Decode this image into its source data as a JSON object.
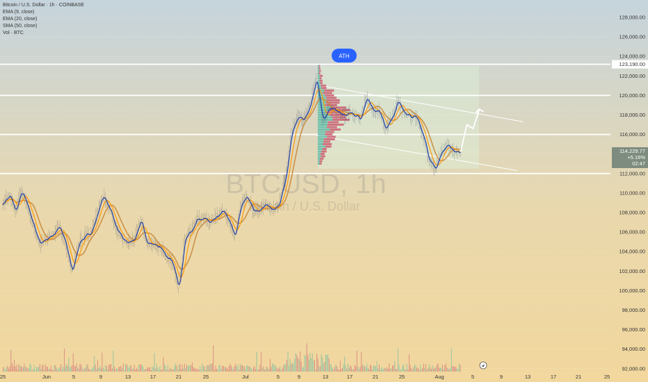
{
  "header": {
    "symbol_line": "Bitcoin / U.S. Dollar · 1h · COINBASE",
    "ema9": "EMA (9, close)",
    "ema20": "EMA (20, close)",
    "sma50": "SMA (50, close)",
    "vol": "Vol · BTC"
  },
  "watermark": {
    "ticker": "BTCUSD, 1h",
    "name": "Bitcoin / U.S. Dollar"
  },
  "labels": {
    "ath": "ATH"
  },
  "price_axis": {
    "ticks": [
      "128,000.00",
      "126,000.00",
      "124,000.00",
      "122,000.00",
      "120,000.00",
      "118,000.00",
      "116,000.00",
      "114,000.00",
      "112,000.00",
      "110,000.00",
      "108,000.00",
      "106,000.00",
      "104,000.00",
      "102,000.00",
      "100,000.00",
      "98,000.00",
      "96,000.00",
      "94,000.00",
      "92,000.00"
    ],
    "horizontal_lines": [
      "123,190.00",
      "120,000.00",
      "116,000.00",
      "112,000.00"
    ],
    "current_price": "114,229.77",
    "current_sub1": "+5.16%",
    "current_sub2": "02:47"
  },
  "chart_data": {
    "type": "line",
    "title": "BTCUSD, 1h",
    "x_ticks": [
      "25",
      "Jun",
      "5",
      "9",
      "13",
      "17",
      "21",
      "25",
      "Jul",
      "5",
      "9",
      "13",
      "17",
      "21",
      "25",
      "Aug",
      "5",
      "9",
      "13",
      "17",
      "21",
      "25"
    ],
    "series": [
      {
        "name": "EMA (9, close)",
        "color": "#1e3fa8"
      },
      {
        "name": "EMA (20, close)",
        "color": "#ff9800"
      },
      {
        "name": "SMA (50, close)",
        "color": "#c98a3c"
      }
    ],
    "price_path": [
      [
        "May 25",
        109000
      ],
      [
        "May 26",
        109800
      ],
      [
        "May 27",
        108200
      ],
      [
        "May 28",
        110300
      ],
      [
        "May 29",
        108600
      ],
      [
        "May 30",
        106200
      ],
      [
        "May 31",
        104800
      ],
      [
        "Jun 1",
        105300
      ],
      [
        "Jun 2",
        105700
      ],
      [
        "Jun 3",
        106600
      ],
      [
        "Jun 4",
        104900
      ],
      [
        "Jun 5",
        101800
      ],
      [
        "Jun 6",
        104600
      ],
      [
        "Jun 7",
        105600
      ],
      [
        "Jun 8",
        105800
      ],
      [
        "Jun 9",
        107900
      ],
      [
        "Jun 10",
        109600
      ],
      [
        "Jun 11",
        108500
      ],
      [
        "Jun 12",
        106400
      ],
      [
        "Jun 13",
        105400
      ],
      [
        "Jun 14",
        105000
      ],
      [
        "Jun 15",
        105300
      ],
      [
        "Jun 16",
        107300
      ],
      [
        "Jun 17",
        104800
      ],
      [
        "Jun 18",
        104600
      ],
      [
        "Jun 19",
        104500
      ],
      [
        "Jun 20",
        103600
      ],
      [
        "Jun 21",
        103000
      ],
      [
        "Jun 22",
        100100
      ],
      [
        "Jun 23",
        105400
      ],
      [
        "Jun 24",
        106000
      ],
      [
        "Jun 25",
        107300
      ],
      [
        "Jun 26",
        107300
      ],
      [
        "Jun 27",
        107100
      ],
      [
        "Jun 28",
        107500
      ],
      [
        "Jun 29",
        108200
      ],
      [
        "Jun 30",
        107300
      ],
      [
        "Jul 1",
        105700
      ],
      [
        "Jul 2",
        108800
      ],
      [
        "Jul 3",
        109600
      ],
      [
        "Jul 4",
        108000
      ],
      [
        "Jul 5",
        108200
      ],
      [
        "Jul 6",
        108900
      ],
      [
        "Jul 7",
        108200
      ],
      [
        "Jul 8",
        108900
      ],
      [
        "Jul 9",
        111200
      ],
      [
        "Jul 10",
        116000
      ],
      [
        "Jul 11",
        117700
      ],
      [
        "Jul 12",
        117500
      ],
      [
        "Jul 13",
        119000
      ],
      [
        "Jul 14",
        121800
      ],
      [
        "Jul 15",
        117500
      ],
      [
        "Jul 16",
        118600
      ],
      [
        "Jul 17",
        118600
      ],
      [
        "Jul 18",
        117900
      ],
      [
        "Jul 19",
        118100
      ],
      [
        "Jul 20",
        118000
      ],
      [
        "Jul 21",
        117400
      ],
      [
        "Jul 22",
        119900
      ],
      [
        "Jul 23",
        118300
      ],
      [
        "Jul 24",
        118400
      ],
      [
        "Jul 25",
        116500
      ],
      [
        "Jul 26",
        117700
      ],
      [
        "Jul 27",
        119400
      ],
      [
        "Jul 28",
        118100
      ],
      [
        "Jul 29",
        117800
      ],
      [
        "Jul 30",
        117700
      ],
      [
        "Jul 31",
        115800
      ],
      [
        "Aug 1",
        113300
      ],
      [
        "Aug 2",
        112600
      ],
      [
        "Aug 3",
        114200
      ],
      [
        "Aug 4",
        115000
      ],
      [
        "Aug 5",
        114100
      ],
      [
        "Aug 6",
        114230
      ]
    ],
    "ath_price": 123190,
    "projection": [
      [
        "Aug 6",
        114230
      ],
      [
        "Aug 7",
        117000
      ],
      [
        "Aug 8",
        116600
      ],
      [
        "Aug 9",
        118600
      ]
    ],
    "ylim": [
      91000,
      129500
    ]
  },
  "colors": {
    "background_top": "#c5d4dd",
    "background_bottom": "#f2d79d",
    "ema9": "#1e3fa8",
    "ema20": "#ff9800",
    "sma50": "#c98a3c",
    "level_line": "#ffffff",
    "volume_profile_up": "#4fb5a3",
    "volume_profile_down": "#c9566b",
    "ath_badge": "#2962ff",
    "price_tag": "#7d8c7e"
  }
}
